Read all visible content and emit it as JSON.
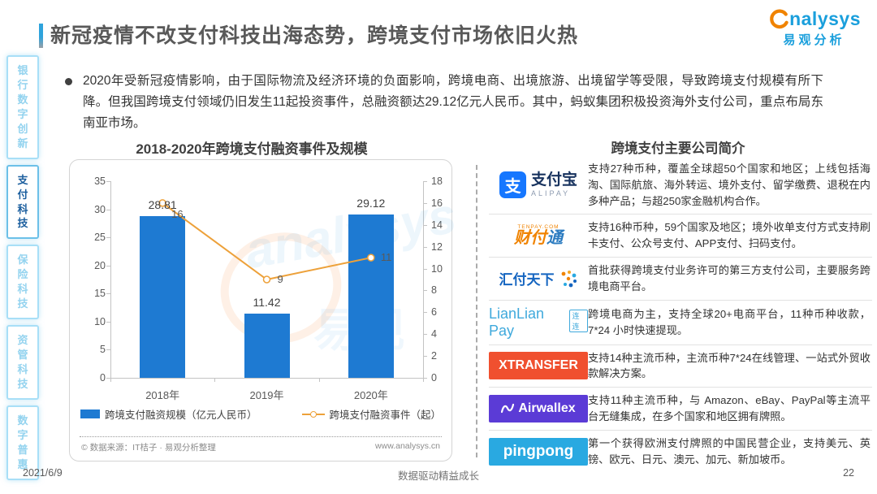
{
  "header": {
    "title": "新冠疫情不改支付科技出海态势，跨境支付市场依旧火热",
    "logo_word": "nalysys",
    "logo_sub": "易观分析"
  },
  "bullet": {
    "text": "2020年受新冠疫情影响，由于国际物流及经济环境的负面影响，跨境电商、出境旅游、出境留学等受限，导致跨境支付规模有所下降。但我国跨境支付领域仍旧发生11起投资事件，总融资额达29.12亿元人民币。其中，蚂蚁集团积极投资海外支付公司，重点布局东南亚市场。"
  },
  "sidebar": {
    "items": [
      {
        "label": "银行数字创新",
        "active": false
      },
      {
        "label": "支付科技",
        "active": true
      },
      {
        "label": "保险科技",
        "active": false
      },
      {
        "label": "资管科技",
        "active": false
      },
      {
        "label": "数字普惠",
        "active": false
      }
    ]
  },
  "chart_data": {
    "type": "bar",
    "combo": "bar+line dual axis",
    "title": "2018-2020年跨境支付融资事件及规模",
    "categories": [
      "2018年",
      "2019年",
      "2020年"
    ],
    "series": [
      {
        "name": "跨境支付融资规模（亿元人民币）",
        "type": "bar",
        "axis": "left",
        "values": [
          28.81,
          11.42,
          29.12
        ],
        "color": "#1e7ad2"
      },
      {
        "name": "跨境支付融资事件（起）",
        "type": "line",
        "axis": "right",
        "values": [
          16,
          9,
          11
        ],
        "color": "#eda13a"
      }
    ],
    "left_axis": {
      "min": 0,
      "max": 35,
      "step": 5
    },
    "right_axis": {
      "min": 0,
      "max": 18,
      "step": 2
    },
    "grid": false,
    "legend_position": "bottom",
    "source_left": "© 数据来源：IT桔子 · 易观分析整理",
    "source_right": "www.analysys.cn",
    "watermark_text1": "analysys",
    "watermark_text2": "易观"
  },
  "right_panel": {
    "title": "跨境支付主要公司简介",
    "companies": [
      {
        "name": "支付宝",
        "logo": {
          "type": "alipay",
          "main": "支付宝",
          "sub": "ALIPAY",
          "icon_char": "支"
        },
        "desc": "支持27种币种，覆盖全球超50个国家和地区；上线包括海淘、国际航旅、海外转运、境外支付、留学缴费、退税在内多种产品；与超250家金融机构合作。"
      },
      {
        "name": "财付通",
        "logo": {
          "type": "tenpay",
          "main": "财付通",
          "sub": "TENPAY.COM"
        },
        "desc": "支持16种币种，59个国家及地区；境外收单支付方式支持刷卡支付、公众号支付、APP支付、扫码支付。"
      },
      {
        "name": "汇付天下",
        "logo": {
          "type": "huifu",
          "main": "汇付天下"
        },
        "desc": "首批获得跨境支付业务许可的第三方支付公司，主要服务跨境电商平台。"
      },
      {
        "name": "连连支付",
        "logo": {
          "type": "lianlian",
          "main": "LianLian Pay",
          "sub": "连连"
        },
        "desc": "跨境电商为主，支持全球20+电商平台，11种币种收款，7*24 小时快速提现。"
      },
      {
        "name": "XTRANSFER",
        "logo": {
          "type": "block",
          "main": "XTRANSFER",
          "bg": "#f0502f",
          "font_size": 16
        },
        "desc": "支持14种主流币种，主流币种7*24在线管理、一站式外贸收款解决方案。"
      },
      {
        "name": "Airwallex",
        "logo": {
          "type": "block-icon",
          "main": "Airwallex",
          "bg": "#5b3bd6",
          "font_size": 16
        },
        "desc": "支持11种主流币种，与 Amazon、eBay、PayPal等主流平台无缝集成，在多个国家和地区拥有牌照。"
      },
      {
        "name": "PingPong",
        "logo": {
          "type": "block",
          "main": "pingpong",
          "bg": "#29a9e1",
          "font_size": 19
        },
        "desc": "第一个获得欧洲支付牌照的中国民营企业，支持美元、英镑、欧元、日元、澳元、加元、新加坡币。"
      }
    ]
  },
  "footer": {
    "date": "2021/6/9",
    "center": "数据驱动精益成长",
    "page": "22"
  },
  "colors": {
    "bar": "#1e7ad2",
    "line": "#eda13a",
    "accent": "#2ea3dc",
    "brand_blue": "#1a9fdc",
    "brand_orange": "#f08300"
  }
}
